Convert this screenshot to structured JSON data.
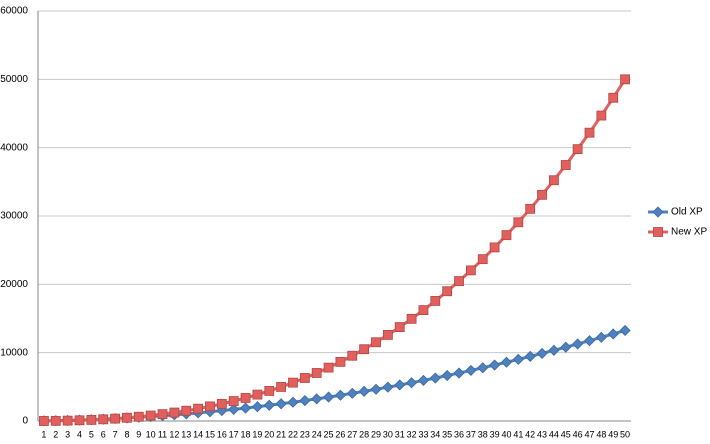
{
  "chart_data": {
    "type": "line",
    "categories": [
      "1",
      "2",
      "3",
      "4",
      "5",
      "6",
      "7",
      "8",
      "9",
      "10",
      "11",
      "12",
      "13",
      "14",
      "15",
      "16",
      "17",
      "18",
      "19",
      "20",
      "21",
      "22",
      "23",
      "24",
      "25",
      "26",
      "27",
      "28",
      "29",
      "30",
      "31",
      "32",
      "33",
      "34",
      "35",
      "36",
      "37",
      "38",
      "39",
      "40",
      "41",
      "42",
      "43",
      "44",
      "45",
      "46",
      "47",
      "48",
      "49",
      "50"
    ],
    "series": [
      {
        "name": "Old XP",
        "color": "#4f81bd",
        "marker": "diamond",
        "values": [
          20,
          50,
          90,
          140,
          200,
          270,
          350,
          440,
          540,
          650,
          770,
          900,
          1040,
          1190,
          1350,
          1520,
          1700,
          1890,
          2090,
          2300,
          2520,
          2750,
          2990,
          3240,
          3500,
          3770,
          4050,
          4340,
          4640,
          4950,
          5270,
          5600,
          5940,
          6290,
          6650,
          7020,
          7400,
          7790,
          8190,
          8600,
          9020,
          9450,
          9890,
          10340,
          10800,
          11270,
          11750,
          12240,
          12740,
          13250
        ]
      },
      {
        "name": "New XP",
        "color": "#e0605e",
        "marker": "square",
        "values": [
          5,
          22,
          53,
          99,
          163,
          245,
          348,
          474,
          624,
          800,
          1004,
          1238,
          1504,
          1803,
          2138,
          2509,
          2919,
          3370,
          3863,
          4400,
          4983,
          5614,
          6295,
          7027,
          7813,
          8653,
          9550,
          10506,
          11522,
          12600,
          13742,
          14950,
          16226,
          17571,
          18988,
          20477,
          22041,
          23682,
          25401,
          27200,
          29081,
          31046,
          33097,
          35235,
          37463,
          39781,
          42192,
          44698,
          47300,
          50000
        ]
      }
    ],
    "ylim": [
      0,
      60000
    ],
    "yticks": [
      0,
      10000,
      20000,
      30000,
      40000,
      50000,
      60000
    ],
    "grid": true,
    "legend": "right"
  }
}
